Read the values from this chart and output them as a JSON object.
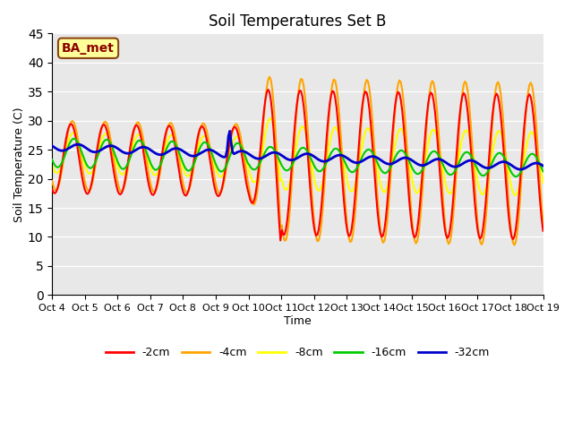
{
  "title": "Soil Temperatures Set B",
  "xlabel": "Time",
  "ylabel": "Soil Temperature (C)",
  "ylim": [
    0,
    45
  ],
  "yticks": [
    0,
    5,
    10,
    15,
    20,
    25,
    30,
    35,
    40,
    45
  ],
  "xtick_labels": [
    "Oct 4",
    "Oct 5",
    "Oct 6",
    "Oct 7",
    "Oct 8",
    "Oct 9",
    "Oct 10",
    "Oct 11",
    "Oct 12",
    "Oct 13",
    "Oct 14",
    "Oct 15",
    "Oct 16",
    "Oct 17",
    "Oct 18",
    "Oct 19"
  ],
  "annotation_text": "BA_met",
  "annotation_color": "#8B0000",
  "annotation_bg": "#FFFF99",
  "annotation_edge": "#8B4513",
  "plot_bg": "#E8E8E8",
  "grid_color": "#FFFFFF",
  "colors": {
    "2cm": "#FF0000",
    "4cm": "#FFA500",
    "8cm": "#FFFF00",
    "16cm": "#00CC00",
    "32cm": "#0000CC"
  },
  "line_widths": {
    "2cm": 1.5,
    "4cm": 1.5,
    "8cm": 1.5,
    "16cm": 1.5,
    "32cm": 2.0
  },
  "legend_labels": [
    "-2cm",
    "-4cm",
    "-8cm",
    "-16cm",
    "-32cm"
  ]
}
